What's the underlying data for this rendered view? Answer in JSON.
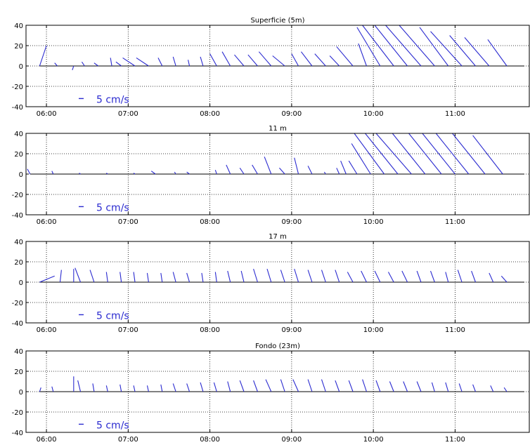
{
  "colors": {
    "stick": "#2b2bd0",
    "frame": "#000000",
    "grid": "#000000",
    "background": "#ffffff"
  },
  "chart_data": [
    {
      "type": "stick-plot",
      "title": "Superficie (5m)",
      "xticks": [
        "06:00",
        "07:00",
        "08:00",
        "09:00",
        "10:00",
        "11:00"
      ],
      "yticks": [
        "40",
        "20",
        "0",
        "-20",
        "-40"
      ],
      "xlim": [
        "05:45",
        "11:55"
      ],
      "ylim": [
        -40,
        40
      ],
      "grid": true,
      "scale_label": "5 cm/s",
      "sticks": [
        {
          "t": "05:55",
          "u": 5,
          "v": 20
        },
        {
          "t": "06:08",
          "u": -2,
          "v": 3
        },
        {
          "t": "06:20",
          "u": -1,
          "v": -4
        },
        {
          "t": "06:28",
          "u": -2,
          "v": 4
        },
        {
          "t": "06:38",
          "u": -3,
          "v": 3
        },
        {
          "t": "06:48",
          "u": -1,
          "v": 8
        },
        {
          "t": "06:55",
          "u": -4,
          "v": 4
        },
        {
          "t": "07:05",
          "u": -9,
          "v": 8
        },
        {
          "t": "07:15",
          "u": -9,
          "v": 8
        },
        {
          "t": "07:25",
          "u": -3,
          "v": 8
        },
        {
          "t": "07:35",
          "u": -2,
          "v": 9
        },
        {
          "t": "07:45",
          "u": -1,
          "v": 6
        },
        {
          "t": "07:55",
          "u": -2,
          "v": 9
        },
        {
          "t": "08:05",
          "u": -5,
          "v": 12
        },
        {
          "t": "08:15",
          "u": -6,
          "v": 14
        },
        {
          "t": "08:25",
          "u": -7,
          "v": 11
        },
        {
          "t": "08:35",
          "u": -7,
          "v": 11
        },
        {
          "t": "08:45",
          "u": -9,
          "v": 14
        },
        {
          "t": "08:55",
          "u": -9,
          "v": 10
        },
        {
          "t": "09:05",
          "u": -5,
          "v": 12
        },
        {
          "t": "09:15",
          "u": -8,
          "v": 14
        },
        {
          "t": "09:25",
          "u": -8,
          "v": 12
        },
        {
          "t": "09:35",
          "u": -7,
          "v": 10
        },
        {
          "t": "09:45",
          "u": -12,
          "v": 19
        },
        {
          "t": "09:55",
          "u": -6,
          "v": 22
        },
        {
          "t": "10:05",
          "u": -17,
          "v": 38
        },
        {
          "t": "10:15",
          "u": -23,
          "v": 40
        },
        {
          "t": "10:25",
          "u": -24,
          "v": 40
        },
        {
          "t": "10:35",
          "u": -26,
          "v": 40
        },
        {
          "t": "10:45",
          "u": -26,
          "v": 40
        },
        {
          "t": "10:55",
          "u": -21,
          "v": 38
        },
        {
          "t": "11:05",
          "u": -23,
          "v": 34
        },
        {
          "t": "11:15",
          "u": -19,
          "v": 30
        },
        {
          "t": "11:25",
          "u": -18,
          "v": 28
        },
        {
          "t": "11:38",
          "u": -14,
          "v": 26
        }
      ]
    },
    {
      "type": "stick-plot",
      "title": "11 m",
      "xticks": [
        "06:00",
        "07:00",
        "08:00",
        "09:00",
        "10:00",
        "11:00"
      ],
      "yticks": [
        "40",
        "20",
        "0",
        "-20",
        "-40"
      ],
      "xlim": [
        "05:45",
        "11:55"
      ],
      "ylim": [
        -40,
        40
      ],
      "grid": true,
      "scale_label": "5 cm/s",
      "sticks": [
        {
          "t": "05:48",
          "u": -2,
          "v": 5
        },
        {
          "t": "06:05",
          "u": -1,
          "v": 3
        },
        {
          "t": "06:25",
          "u": -1,
          "v": 1
        },
        {
          "t": "06:45",
          "u": -1,
          "v": 1
        },
        {
          "t": "07:05",
          "u": -1,
          "v": 1
        },
        {
          "t": "07:20",
          "u": -3,
          "v": 3
        },
        {
          "t": "07:35",
          "u": -1,
          "v": 2
        },
        {
          "t": "07:45",
          "u": -2,
          "v": 2
        },
        {
          "t": "08:05",
          "u": -1,
          "v": 4
        },
        {
          "t": "08:15",
          "u": -3,
          "v": 9
        },
        {
          "t": "08:25",
          "u": -3,
          "v": 6
        },
        {
          "t": "08:35",
          "u": -4,
          "v": 9
        },
        {
          "t": "08:45",
          "u": -5,
          "v": 17
        },
        {
          "t": "08:55",
          "u": -4,
          "v": 6
        },
        {
          "t": "09:05",
          "u": -3,
          "v": 16
        },
        {
          "t": "09:15",
          "u": -3,
          "v": 8
        },
        {
          "t": "09:25",
          "u": -1,
          "v": 2
        },
        {
          "t": "09:35",
          "u": -2,
          "v": 6
        },
        {
          "t": "09:40",
          "u": -4,
          "v": 13
        },
        {
          "t": "09:48",
          "u": -6,
          "v": 13
        },
        {
          "t": "09:58",
          "u": -14,
          "v": 30
        },
        {
          "t": "10:08",
          "u": -22,
          "v": 40
        },
        {
          "t": "10:18",
          "u": -24,
          "v": 40
        },
        {
          "t": "10:28",
          "u": -26,
          "v": 40
        },
        {
          "t": "10:38",
          "u": -24,
          "v": 40
        },
        {
          "t": "10:50",
          "u": -24,
          "v": 40
        },
        {
          "t": "11:00",
          "u": -24,
          "v": 40
        },
        {
          "t": "11:10",
          "u": -24,
          "v": 40
        },
        {
          "t": "11:22",
          "u": -24,
          "v": 40
        },
        {
          "t": "11:35",
          "u": -22,
          "v": 38
        }
      ]
    },
    {
      "type": "stick-plot",
      "title": "17 m",
      "xticks": [
        "06:00",
        "07:00",
        "08:00",
        "09:00",
        "10:00",
        "11:00"
      ],
      "yticks": [
        "40",
        "20",
        "0",
        "-20",
        "-40"
      ],
      "xlim": [
        "05:45",
        "11:55"
      ],
      "ylim": [
        -40,
        40
      ],
      "grid": true,
      "scale_label": "5 cm/s",
      "sticks": [
        {
          "t": "05:55",
          "u": 11,
          "v": 6
        },
        {
          "t": "06:10",
          "u": 1,
          "v": 12
        },
        {
          "t": "06:20",
          "u": 0,
          "v": 13
        },
        {
          "t": "06:25",
          "u": -4,
          "v": 14
        },
        {
          "t": "06:35",
          "u": -3,
          "v": 12
        },
        {
          "t": "06:45",
          "u": -1,
          "v": 10
        },
        {
          "t": "06:55",
          "u": -1,
          "v": 10
        },
        {
          "t": "07:05",
          "u": -1,
          "v": 10
        },
        {
          "t": "07:15",
          "u": -1,
          "v": 9
        },
        {
          "t": "07:25",
          "u": -1,
          "v": 9
        },
        {
          "t": "07:35",
          "u": -2,
          "v": 10
        },
        {
          "t": "07:45",
          "u": -2,
          "v": 9
        },
        {
          "t": "07:55",
          "u": -1,
          "v": 9
        },
        {
          "t": "08:05",
          "u": -1,
          "v": 10
        },
        {
          "t": "08:15",
          "u": -2,
          "v": 11
        },
        {
          "t": "08:25",
          "u": -2,
          "v": 11
        },
        {
          "t": "08:35",
          "u": -3,
          "v": 13
        },
        {
          "t": "08:45",
          "u": -3,
          "v": 13
        },
        {
          "t": "08:55",
          "u": -3,
          "v": 12
        },
        {
          "t": "09:05",
          "u": -3,
          "v": 13
        },
        {
          "t": "09:15",
          "u": -3,
          "v": 12
        },
        {
          "t": "09:25",
          "u": -3,
          "v": 12
        },
        {
          "t": "09:35",
          "u": -3,
          "v": 12
        },
        {
          "t": "09:45",
          "u": -4,
          "v": 10
        },
        {
          "t": "09:55",
          "u": -4,
          "v": 11
        },
        {
          "t": "10:05",
          "u": -4,
          "v": 11
        },
        {
          "t": "10:15",
          "u": -4,
          "v": 10
        },
        {
          "t": "10:25",
          "u": -4,
          "v": 11
        },
        {
          "t": "10:35",
          "u": -3,
          "v": 11
        },
        {
          "t": "10:45",
          "u": -3,
          "v": 11
        },
        {
          "t": "10:55",
          "u": -2,
          "v": 10
        },
        {
          "t": "11:05",
          "u": -3,
          "v": 12
        },
        {
          "t": "11:15",
          "u": -3,
          "v": 11
        },
        {
          "t": "11:28",
          "u": -3,
          "v": 9
        },
        {
          "t": "11:38",
          "u": -4,
          "v": 6
        }
      ]
    },
    {
      "type": "stick-plot",
      "title": "Fondo (23m)",
      "xticks": [
        "06:00",
        "07:00",
        "08:00",
        "09:00",
        "10:00",
        "11:00"
      ],
      "yticks": [
        "40",
        "20",
        "0",
        "-20",
        "-40"
      ],
      "xlim": [
        "05:45",
        "11:55"
      ],
      "ylim": [
        -40,
        40
      ],
      "grid": true,
      "scale_label": "5 cm/s",
      "sticks": [
        {
          "t": "05:55",
          "u": 1,
          "v": 4
        },
        {
          "t": "06:05",
          "u": -1,
          "v": 5
        },
        {
          "t": "06:20",
          "u": 0,
          "v": 15
        },
        {
          "t": "06:25",
          "u": -2,
          "v": 11
        },
        {
          "t": "06:35",
          "u": -1,
          "v": 8
        },
        {
          "t": "06:45",
          "u": -1,
          "v": 6
        },
        {
          "t": "06:55",
          "u": -1,
          "v": 7
        },
        {
          "t": "07:05",
          "u": -1,
          "v": 6
        },
        {
          "t": "07:15",
          "u": -1,
          "v": 6
        },
        {
          "t": "07:25",
          "u": -1,
          "v": 7
        },
        {
          "t": "07:35",
          "u": -2,
          "v": 8
        },
        {
          "t": "07:45",
          "u": -2,
          "v": 8
        },
        {
          "t": "07:55",
          "u": -2,
          "v": 9
        },
        {
          "t": "08:05",
          "u": -2,
          "v": 9
        },
        {
          "t": "08:15",
          "u": -2,
          "v": 10
        },
        {
          "t": "08:25",
          "u": -3,
          "v": 11
        },
        {
          "t": "08:35",
          "u": -3,
          "v": 11
        },
        {
          "t": "08:45",
          "u": -4,
          "v": 12
        },
        {
          "t": "08:55",
          "u": -3,
          "v": 12
        },
        {
          "t": "09:05",
          "u": -4,
          "v": 12
        },
        {
          "t": "09:15",
          "u": -3,
          "v": 12
        },
        {
          "t": "09:25",
          "u": -3,
          "v": 12
        },
        {
          "t": "09:35",
          "u": -3,
          "v": 11
        },
        {
          "t": "09:45",
          "u": -3,
          "v": 11
        },
        {
          "t": "09:55",
          "u": -3,
          "v": 12
        },
        {
          "t": "10:05",
          "u": -3,
          "v": 11
        },
        {
          "t": "10:15",
          "u": -3,
          "v": 10
        },
        {
          "t": "10:25",
          "u": -3,
          "v": 10
        },
        {
          "t": "10:35",
          "u": -3,
          "v": 10
        },
        {
          "t": "10:45",
          "u": -2,
          "v": 9
        },
        {
          "t": "10:55",
          "u": -2,
          "v": 9
        },
        {
          "t": "11:05",
          "u": -2,
          "v": 8
        },
        {
          "t": "11:15",
          "u": -2,
          "v": 7
        },
        {
          "t": "11:28",
          "u": -2,
          "v": 6
        },
        {
          "t": "11:38",
          "u": -2,
          "v": 4
        }
      ]
    }
  ]
}
